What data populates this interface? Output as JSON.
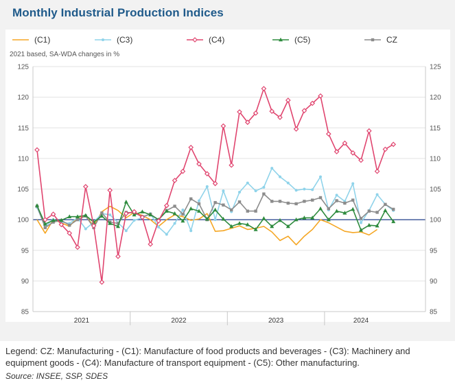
{
  "chart_data": {
    "type": "line",
    "title": "Monthly Industrial Production Indices",
    "subtitle": "2021 based, SA-WDA changes in %",
    "ylim": [
      85,
      125
    ],
    "yticks": [
      85,
      90,
      95,
      100,
      105,
      110,
      115,
      120,
      125
    ],
    "years": [
      "2021",
      "2022",
      "2023",
      "2024"
    ],
    "reference_line": 100,
    "x": [
      "2021-01",
      "2021-02",
      "2021-03",
      "2021-04",
      "2021-05",
      "2021-06",
      "2021-07",
      "2021-08",
      "2021-09",
      "2021-10",
      "2021-11",
      "2021-12",
      "2022-01",
      "2022-02",
      "2022-03",
      "2022-04",
      "2022-05",
      "2022-06",
      "2022-07",
      "2022-08",
      "2022-09",
      "2022-10",
      "2022-11",
      "2022-12",
      "2023-01",
      "2023-02",
      "2023-03",
      "2023-04",
      "2023-05",
      "2023-06",
      "2023-07",
      "2023-08",
      "2023-09",
      "2023-10",
      "2023-11",
      "2023-12",
      "2024-01",
      "2024-02",
      "2024-03",
      "2024-04",
      "2024-05",
      "2024-06",
      "2024-07",
      "2024-08",
      "2024-09"
    ],
    "series": [
      {
        "name": "(C1)",
        "color": "#f5a623",
        "marker": "none",
        "values": [
          100.0,
          97.8,
          100.0,
          99.5,
          98.9,
          100.4,
          100.6,
          99.0,
          101.3,
          102.2,
          101.5,
          100.3,
          101.2,
          100.7,
          100.0,
          98.9,
          100.0,
          100.8,
          100.5,
          99.9,
          100.1,
          101.0,
          98.1,
          98.2,
          98.6,
          99.0,
          98.4,
          98.6,
          98.9,
          98.0,
          96.6,
          97.3,
          95.9,
          97.3,
          98.4,
          100.0,
          99.5,
          98.8,
          98.1,
          97.9,
          98.0,
          97.5,
          98.4,
          null,
          null
        ]
      },
      {
        "name": "(C3)",
        "color": "#8fd3ea",
        "marker": "dot",
        "values": [
          102.0,
          98.9,
          100.0,
          99.6,
          99.4,
          100.3,
          98.5,
          99.6,
          101.0,
          100.8,
          99.5,
          98.2,
          99.9,
          100.3,
          101.0,
          98.8,
          97.6,
          99.4,
          101.6,
          98.2,
          103.1,
          105.4,
          100.0,
          104.7,
          101.3,
          104.5,
          106.0,
          104.7,
          105.3,
          108.4,
          107.0,
          106.0,
          104.8,
          105.0,
          104.9,
          107.0,
          101.6,
          104.0,
          103.0,
          105.9,
          99.5,
          101.5,
          104.1,
          102.5,
          101.5
        ]
      },
      {
        "name": "(C4)",
        "color": "#e0456f",
        "marker": "diamond",
        "values": [
          111.4,
          100.0,
          100.9,
          99.2,
          97.8,
          95.5,
          105.4,
          99.0,
          89.8,
          104.8,
          94.0,
          101.0,
          101.3,
          100.4,
          96.0,
          99.8,
          102.3,
          106.4,
          107.9,
          111.8,
          109.1,
          107.5,
          105.9,
          115.3,
          108.9,
          117.6,
          115.9,
          117.4,
          121.4,
          117.7,
          116.7,
          119.5,
          114.8,
          117.8,
          119.0,
          120.2,
          114.0,
          111.1,
          112.5,
          110.9,
          109.7,
          114.5,
          107.9,
          111.5,
          112.3
        ]
      },
      {
        "name": "(C5)",
        "color": "#2e8b3e",
        "marker": "triangle",
        "values": [
          102.3,
          99.3,
          99.9,
          99.9,
          100.5,
          100.5,
          100.7,
          99.6,
          100.6,
          99.4,
          98.9,
          102.9,
          100.8,
          101.3,
          100.8,
          100.0,
          101.4,
          101.0,
          99.8,
          101.8,
          101.4,
          100.1,
          101.6,
          100.1,
          98.9,
          99.4,
          99.2,
          98.4,
          100.2,
          98.9,
          99.9,
          98.9,
          100.0,
          100.3,
          100.3,
          101.8,
          100.0,
          101.4,
          101.1,
          101.7,
          98.3,
          99.1,
          99.0,
          101.5,
          99.7
        ]
      },
      {
        "name": "CZ",
        "color": "#8c8c8c",
        "marker": "square",
        "values": [
          102.2,
          98.7,
          99.6,
          99.9,
          99.1,
          100.0,
          100.6,
          98.7,
          101.1,
          99.6,
          99.4,
          101.2,
          101.1,
          100.5,
          100.9,
          100.0,
          101.5,
          102.2,
          100.9,
          103.4,
          102.6,
          100.0,
          102.8,
          102.4,
          101.6,
          102.9,
          101.4,
          101.4,
          104.2,
          103.0,
          103.0,
          102.7,
          102.6,
          103.0,
          103.2,
          103.6,
          101.8,
          103.1,
          102.7,
          103.2,
          100.2,
          101.4,
          101.2,
          102.5,
          101.7
        ]
      }
    ]
  },
  "legend_note": "Legend: CZ: Manufacturing - (C1): Manufacture of food products and beverages - (C3): Machinery and equipment goods - (C4): Manufacture of transport equipment - (C5): Other manufacturing.",
  "source": "Source: INSEE, SSP, SDES"
}
